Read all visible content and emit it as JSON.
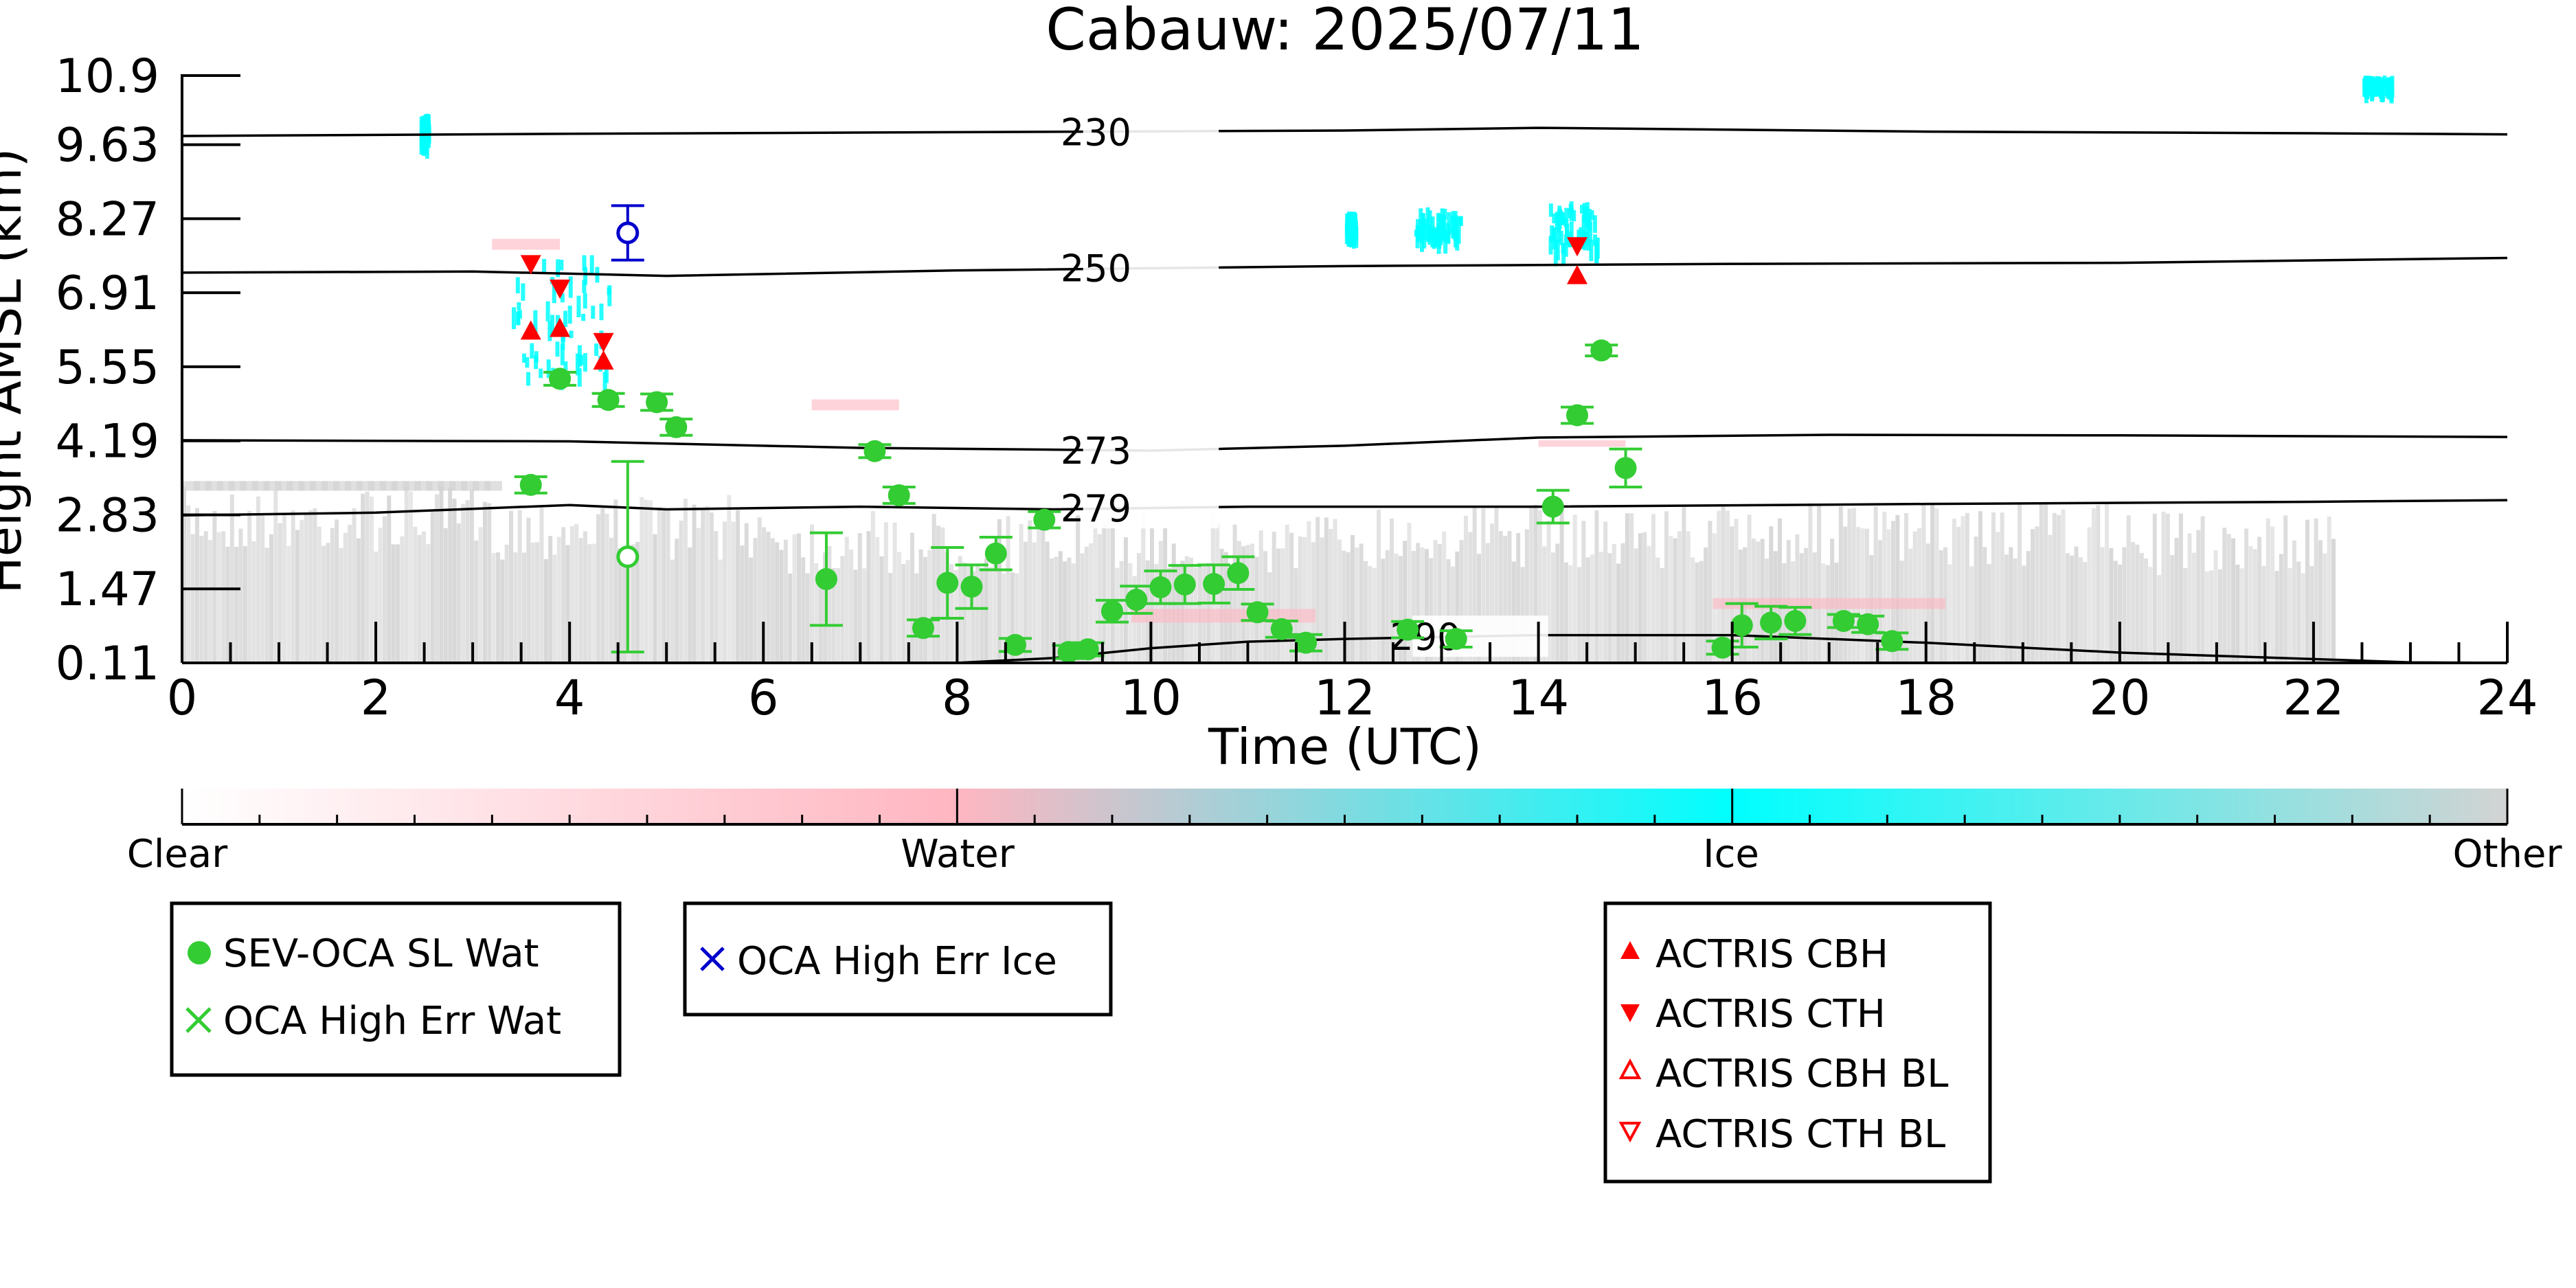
{
  "chart_data": {
    "type": "scatter",
    "title": "Cabauw: 2025/07/11",
    "xlabel": "Time (UTC)",
    "ylabel": "Height AMSL (km)",
    "xlim": [
      0,
      24
    ],
    "ylim": [
      0.11,
      10.9
    ],
    "x_ticks": [
      0,
      2,
      4,
      6,
      8,
      10,
      12,
      14,
      16,
      18,
      20,
      22,
      24
    ],
    "y_ticks": [
      "0.11",
      "1.47",
      "2.83",
      "4.19",
      "5.55",
      "6.91",
      "8.27",
      "9.63",
      "10.9"
    ],
    "grid": false,
    "colorbar": {
      "labels": [
        "Clear",
        "Water",
        "Ice",
        "Other"
      ],
      "colors": [
        "#ffffff",
        "#ffb6c1",
        "#00ffff",
        "#d3d3d3"
      ]
    },
    "contours": [
      {
        "label": "230",
        "points": [
          [
            0,
            9.79
          ],
          [
            4,
            9.83
          ],
          [
            8,
            9.86
          ],
          [
            12,
            9.89
          ],
          [
            14,
            9.94
          ],
          [
            18,
            9.87
          ],
          [
            22,
            9.84
          ],
          [
            24,
            9.82
          ]
        ]
      },
      {
        "label": "250",
        "points": [
          [
            0,
            7.28
          ],
          [
            3,
            7.3
          ],
          [
            5,
            7.22
          ],
          [
            8,
            7.32
          ],
          [
            12,
            7.4
          ],
          [
            16,
            7.44
          ],
          [
            20,
            7.46
          ],
          [
            24,
            7.55
          ]
        ]
      },
      {
        "label": "273",
        "points": [
          [
            0,
            4.2
          ],
          [
            4,
            4.18
          ],
          [
            7,
            4.06
          ],
          [
            10,
            4.01
          ],
          [
            12,
            4.1
          ],
          [
            14,
            4.25
          ],
          [
            17,
            4.3
          ],
          [
            20,
            4.29
          ],
          [
            24,
            4.26
          ]
        ]
      },
      {
        "label": "279",
        "points": [
          [
            0,
            2.82
          ],
          [
            2,
            2.87
          ],
          [
            3,
            2.94
          ],
          [
            4,
            3.01
          ],
          [
            5,
            2.93
          ],
          [
            7,
            2.98
          ],
          [
            9,
            2.93
          ],
          [
            11,
            2.98
          ],
          [
            14,
            2.98
          ],
          [
            18,
            3.03
          ],
          [
            22,
            3.07
          ],
          [
            24,
            3.1
          ]
        ]
      },
      {
        "label": "290",
        "points": [
          [
            8,
            0.11
          ],
          [
            9,
            0.2
          ],
          [
            10,
            0.38
          ],
          [
            11,
            0.5
          ],
          [
            12,
            0.55
          ],
          [
            14,
            0.62
          ],
          [
            16,
            0.62
          ],
          [
            18,
            0.48
          ],
          [
            20,
            0.3
          ],
          [
            23,
            0.12
          ],
          [
            24,
            0.11
          ]
        ]
      }
    ],
    "series": [
      {
        "name": "SEV-OCA SL Wat",
        "color": "#33cc33",
        "marker": "filled-circle",
        "points": [
          {
            "x": 3.6,
            "y": 3.38,
            "err": 0.15
          },
          {
            "x": 3.9,
            "y": 5.33,
            "err": 0.12
          },
          {
            "x": 4.4,
            "y": 4.94,
            "err": 0.12
          },
          {
            "x": 4.9,
            "y": 4.9,
            "err": 0.15
          },
          {
            "x": 5.1,
            "y": 4.44,
            "err": 0.15
          },
          {
            "x": 6.65,
            "y": 1.65,
            "err": 0.85
          },
          {
            "x": 7.15,
            "y": 4.0,
            "err": 0.12
          },
          {
            "x": 7.4,
            "y": 3.19,
            "err": 0.15
          },
          {
            "x": 7.65,
            "y": 0.75,
            "err": 0.15
          },
          {
            "x": 7.9,
            "y": 1.58,
            "err": 0.65
          },
          {
            "x": 8.15,
            "y": 1.51,
            "err": 0.4
          },
          {
            "x": 8.4,
            "y": 2.12,
            "err": 0.3
          },
          {
            "x": 8.6,
            "y": 0.44,
            "err": 0.12
          },
          {
            "x": 8.9,
            "y": 2.74,
            "err": 0.15
          },
          {
            "x": 9.15,
            "y": 0.31,
            "err": 0.12
          },
          {
            "x": 9.35,
            "y": 0.36,
            "err": 0.12
          },
          {
            "x": 9.6,
            "y": 1.06,
            "err": 0.2
          },
          {
            "x": 9.85,
            "y": 1.27,
            "err": 0.25
          },
          {
            "x": 10.1,
            "y": 1.5,
            "err": 0.3
          },
          {
            "x": 10.35,
            "y": 1.55,
            "err": 0.35
          },
          {
            "x": 10.65,
            "y": 1.56,
            "err": 0.35
          },
          {
            "x": 10.9,
            "y": 1.76,
            "err": 0.3
          },
          {
            "x": 11.1,
            "y": 1.04,
            "err": 0.15
          },
          {
            "x": 11.35,
            "y": 0.73,
            "err": 0.15
          },
          {
            "x": 11.6,
            "y": 0.48,
            "err": 0.15
          },
          {
            "x": 12.65,
            "y": 0.72,
            "err": 0.15
          },
          {
            "x": 13.15,
            "y": 0.55,
            "err": 0.15
          },
          {
            "x": 14.15,
            "y": 2.98,
            "err": 0.3
          },
          {
            "x": 14.4,
            "y": 4.66,
            "err": 0.15
          },
          {
            "x": 14.65,
            "y": 5.85,
            "err": 0.1
          },
          {
            "x": 14.9,
            "y": 3.69,
            "err": 0.35
          },
          {
            "x": 15.9,
            "y": 0.39,
            "err": 0.12
          },
          {
            "x": 16.1,
            "y": 0.8,
            "err": 0.4
          },
          {
            "x": 16.4,
            "y": 0.85,
            "err": 0.3
          },
          {
            "x": 16.65,
            "y": 0.88,
            "err": 0.25
          },
          {
            "x": 17.15,
            "y": 0.88,
            "err": 0.12
          },
          {
            "x": 17.4,
            "y": 0.82,
            "err": 0.15
          },
          {
            "x": 17.65,
            "y": 0.51,
            "err": 0.15
          }
        ]
      },
      {
        "name": "OCA High Err Wat",
        "color": "#33cc33",
        "marker": "x",
        "points": [
          {
            "x": 4.6,
            "y": 2.06,
            "err": 1.75
          }
        ]
      },
      {
        "name": "OCA High Err Ice",
        "color": "#0000cc",
        "marker": "x",
        "points": [
          {
            "x": 4.6,
            "y": 8.01,
            "err": 0.5
          }
        ]
      },
      {
        "name": "ACTRIS CBH",
        "color": "#ff0000",
        "marker": "triangle-up",
        "points": [
          {
            "x": 3.6,
            "y": 6.2
          },
          {
            "x": 3.9,
            "y": 6.25
          },
          {
            "x": 4.35,
            "y": 5.65
          },
          {
            "x": 14.4,
            "y": 7.22
          }
        ]
      },
      {
        "name": "ACTRIS CTH",
        "color": "#ff0000",
        "marker": "triangle-down",
        "points": [
          {
            "x": 3.6,
            "y": 7.45
          },
          {
            "x": 3.9,
            "y": 7.0
          },
          {
            "x": 4.35,
            "y": 6.02
          },
          {
            "x": 14.4,
            "y": 7.78
          }
        ]
      },
      {
        "name": "ACTRIS CBH BL",
        "color": "#ff0000",
        "marker": "open-triangle-up",
        "points": []
      },
      {
        "name": "ACTRIS CTH BL",
        "color": "#ff0000",
        "marker": "open-triangle-down",
        "points": []
      }
    ],
    "legends": [
      {
        "entries": [
          "SEV-OCA SL Wat",
          "OCA High Err Wat"
        ]
      },
      {
        "entries": [
          "OCA High Err Ice"
        ]
      },
      {
        "entries": [
          "ACTRIS CBH",
          "ACTRIS CTH",
          "ACTRIS CBH BL",
          "ACTRIS CTH BL"
        ]
      }
    ]
  }
}
